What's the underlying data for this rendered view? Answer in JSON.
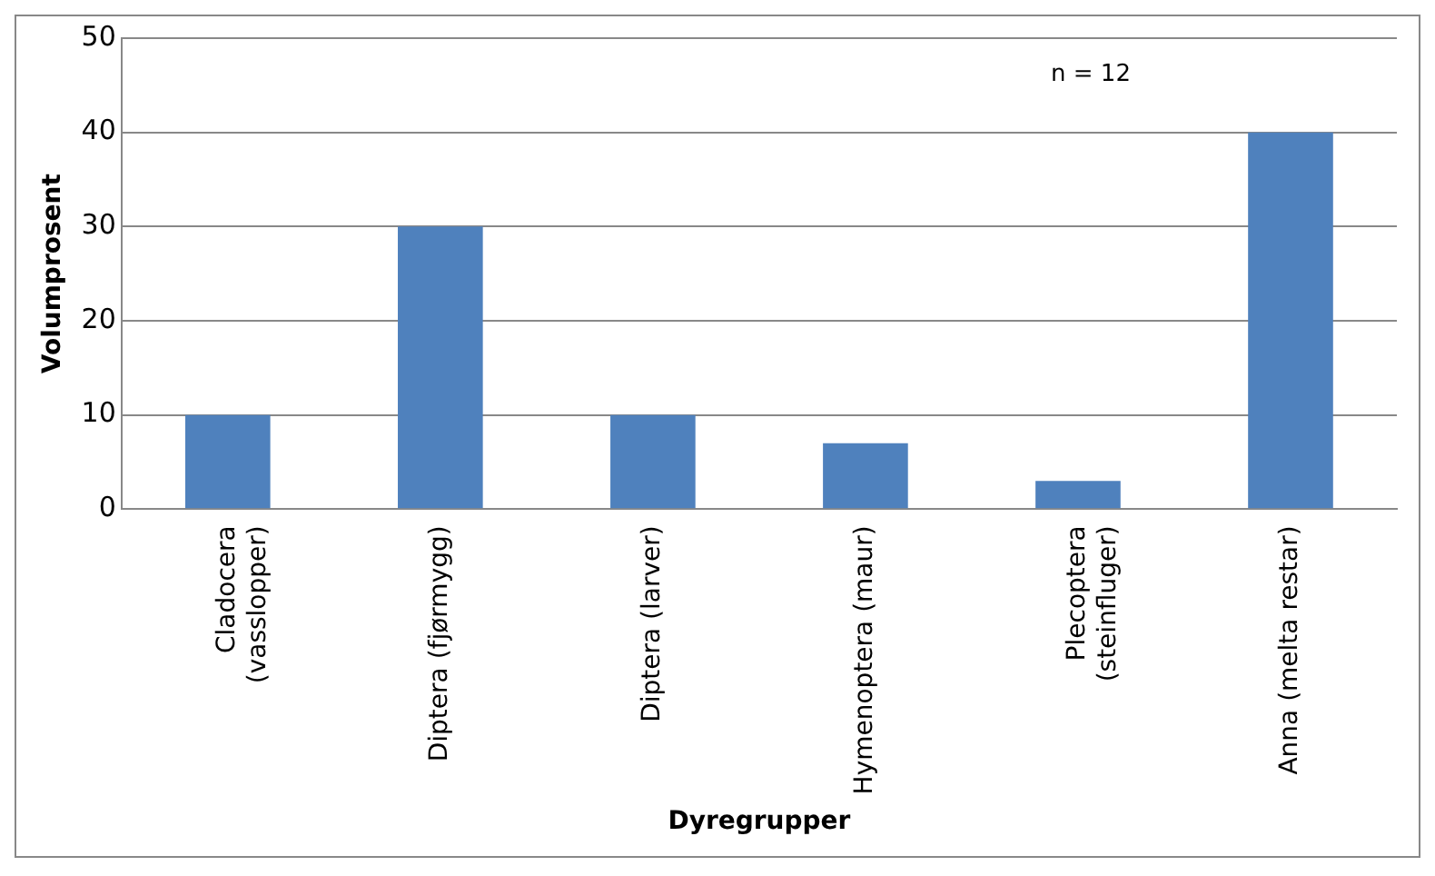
{
  "chart_data": {
    "type": "bar",
    "categories": [
      "Cladocera (vasslopper)",
      "Diptera (fjørmygg)",
      "Diptera (larver)",
      "Hymenoptera (maur)",
      "Plecoptera (steinfluger)",
      "Anna (melta restar)"
    ],
    "values": [
      10,
      30,
      10,
      7,
      3,
      40
    ],
    "color": "#4f81bd",
    "xlabel": "Dyregrupper",
    "ylabel": "Volumprosent",
    "ylim": [
      0,
      50
    ],
    "yticks": [
      0,
      10,
      20,
      30,
      40,
      50
    ],
    "grid": "y",
    "annotations": [
      "n = 12"
    ]
  }
}
